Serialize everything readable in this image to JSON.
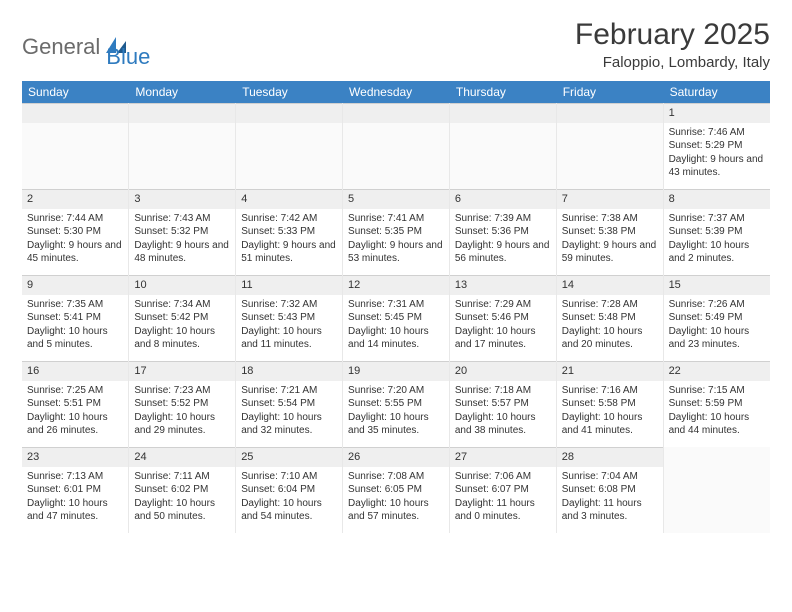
{
  "logo": {
    "general": "General",
    "blue": "Blue"
  },
  "title": "February 2025",
  "location": "Faloppio, Lombardy, Italy",
  "colors": {
    "header_bg": "#3b82c4",
    "header_fg": "#ffffff",
    "daynum_bg": "#efefef",
    "text": "#333333",
    "logo_gray": "#6b6b6b",
    "logo_blue": "#2f7bbf"
  },
  "day_headers": [
    "Sunday",
    "Monday",
    "Tuesday",
    "Wednesday",
    "Thursday",
    "Friday",
    "Saturday"
  ],
  "weeks": [
    [
      {
        "n": "",
        "empty": true
      },
      {
        "n": "",
        "empty": true
      },
      {
        "n": "",
        "empty": true
      },
      {
        "n": "",
        "empty": true
      },
      {
        "n": "",
        "empty": true
      },
      {
        "n": "",
        "empty": true
      },
      {
        "n": "1",
        "sunrise": "Sunrise: 7:46 AM",
        "sunset": "Sunset: 5:29 PM",
        "daylight": "Daylight: 9 hours and 43 minutes."
      }
    ],
    [
      {
        "n": "2",
        "sunrise": "Sunrise: 7:44 AM",
        "sunset": "Sunset: 5:30 PM",
        "daylight": "Daylight: 9 hours and 45 minutes."
      },
      {
        "n": "3",
        "sunrise": "Sunrise: 7:43 AM",
        "sunset": "Sunset: 5:32 PM",
        "daylight": "Daylight: 9 hours and 48 minutes."
      },
      {
        "n": "4",
        "sunrise": "Sunrise: 7:42 AM",
        "sunset": "Sunset: 5:33 PM",
        "daylight": "Daylight: 9 hours and 51 minutes."
      },
      {
        "n": "5",
        "sunrise": "Sunrise: 7:41 AM",
        "sunset": "Sunset: 5:35 PM",
        "daylight": "Daylight: 9 hours and 53 minutes."
      },
      {
        "n": "6",
        "sunrise": "Sunrise: 7:39 AM",
        "sunset": "Sunset: 5:36 PM",
        "daylight": "Daylight: 9 hours and 56 minutes."
      },
      {
        "n": "7",
        "sunrise": "Sunrise: 7:38 AM",
        "sunset": "Sunset: 5:38 PM",
        "daylight": "Daylight: 9 hours and 59 minutes."
      },
      {
        "n": "8",
        "sunrise": "Sunrise: 7:37 AM",
        "sunset": "Sunset: 5:39 PM",
        "daylight": "Daylight: 10 hours and 2 minutes."
      }
    ],
    [
      {
        "n": "9",
        "sunrise": "Sunrise: 7:35 AM",
        "sunset": "Sunset: 5:41 PM",
        "daylight": "Daylight: 10 hours and 5 minutes."
      },
      {
        "n": "10",
        "sunrise": "Sunrise: 7:34 AM",
        "sunset": "Sunset: 5:42 PM",
        "daylight": "Daylight: 10 hours and 8 minutes."
      },
      {
        "n": "11",
        "sunrise": "Sunrise: 7:32 AM",
        "sunset": "Sunset: 5:43 PM",
        "daylight": "Daylight: 10 hours and 11 minutes."
      },
      {
        "n": "12",
        "sunrise": "Sunrise: 7:31 AM",
        "sunset": "Sunset: 5:45 PM",
        "daylight": "Daylight: 10 hours and 14 minutes."
      },
      {
        "n": "13",
        "sunrise": "Sunrise: 7:29 AM",
        "sunset": "Sunset: 5:46 PM",
        "daylight": "Daylight: 10 hours and 17 minutes."
      },
      {
        "n": "14",
        "sunrise": "Sunrise: 7:28 AM",
        "sunset": "Sunset: 5:48 PM",
        "daylight": "Daylight: 10 hours and 20 minutes."
      },
      {
        "n": "15",
        "sunrise": "Sunrise: 7:26 AM",
        "sunset": "Sunset: 5:49 PM",
        "daylight": "Daylight: 10 hours and 23 minutes."
      }
    ],
    [
      {
        "n": "16",
        "sunrise": "Sunrise: 7:25 AM",
        "sunset": "Sunset: 5:51 PM",
        "daylight": "Daylight: 10 hours and 26 minutes."
      },
      {
        "n": "17",
        "sunrise": "Sunrise: 7:23 AM",
        "sunset": "Sunset: 5:52 PM",
        "daylight": "Daylight: 10 hours and 29 minutes."
      },
      {
        "n": "18",
        "sunrise": "Sunrise: 7:21 AM",
        "sunset": "Sunset: 5:54 PM",
        "daylight": "Daylight: 10 hours and 32 minutes."
      },
      {
        "n": "19",
        "sunrise": "Sunrise: 7:20 AM",
        "sunset": "Sunset: 5:55 PM",
        "daylight": "Daylight: 10 hours and 35 minutes."
      },
      {
        "n": "20",
        "sunrise": "Sunrise: 7:18 AM",
        "sunset": "Sunset: 5:57 PM",
        "daylight": "Daylight: 10 hours and 38 minutes."
      },
      {
        "n": "21",
        "sunrise": "Sunrise: 7:16 AM",
        "sunset": "Sunset: 5:58 PM",
        "daylight": "Daylight: 10 hours and 41 minutes."
      },
      {
        "n": "22",
        "sunrise": "Sunrise: 7:15 AM",
        "sunset": "Sunset: 5:59 PM",
        "daylight": "Daylight: 10 hours and 44 minutes."
      }
    ],
    [
      {
        "n": "23",
        "sunrise": "Sunrise: 7:13 AM",
        "sunset": "Sunset: 6:01 PM",
        "daylight": "Daylight: 10 hours and 47 minutes."
      },
      {
        "n": "24",
        "sunrise": "Sunrise: 7:11 AM",
        "sunset": "Sunset: 6:02 PM",
        "daylight": "Daylight: 10 hours and 50 minutes."
      },
      {
        "n": "25",
        "sunrise": "Sunrise: 7:10 AM",
        "sunset": "Sunset: 6:04 PM",
        "daylight": "Daylight: 10 hours and 54 minutes."
      },
      {
        "n": "26",
        "sunrise": "Sunrise: 7:08 AM",
        "sunset": "Sunset: 6:05 PM",
        "daylight": "Daylight: 10 hours and 57 minutes."
      },
      {
        "n": "27",
        "sunrise": "Sunrise: 7:06 AM",
        "sunset": "Sunset: 6:07 PM",
        "daylight": "Daylight: 11 hours and 0 minutes."
      },
      {
        "n": "28",
        "sunrise": "Sunrise: 7:04 AM",
        "sunset": "Sunset: 6:08 PM",
        "daylight": "Daylight: 11 hours and 3 minutes."
      },
      {
        "n": "",
        "empty": true
      }
    ]
  ]
}
